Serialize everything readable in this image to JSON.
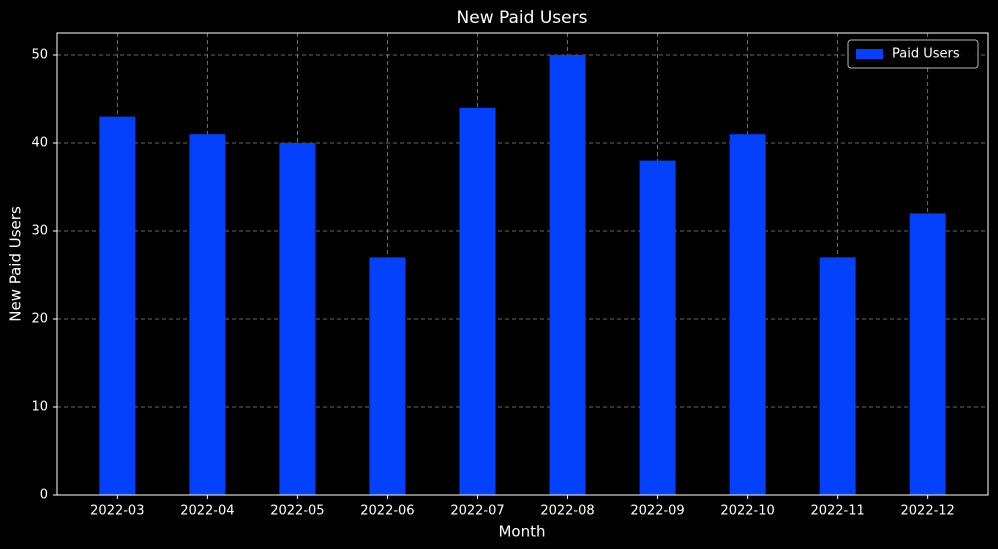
{
  "chart_data": {
    "type": "bar",
    "title": "New Paid Users",
    "x_label": "Month",
    "y_label": "New Paid Users",
    "categories": [
      "2022-03",
      "2022-04",
      "2022-05",
      "2022-06",
      "2022-07",
      "2022-08",
      "2022-09",
      "2022-10",
      "2022-11",
      "2022-12"
    ],
    "series": [
      {
        "name": "Paid Users",
        "color": "#0341fd",
        "values": [
          43,
          41,
          40,
          27,
          44,
          50,
          38,
          41,
          27,
          32
        ]
      }
    ],
    "ylim": [
      0,
      52.5
    ],
    "yticks": [
      0,
      10,
      20,
      30,
      40,
      50
    ],
    "grid": true,
    "legend": "upper right"
  }
}
